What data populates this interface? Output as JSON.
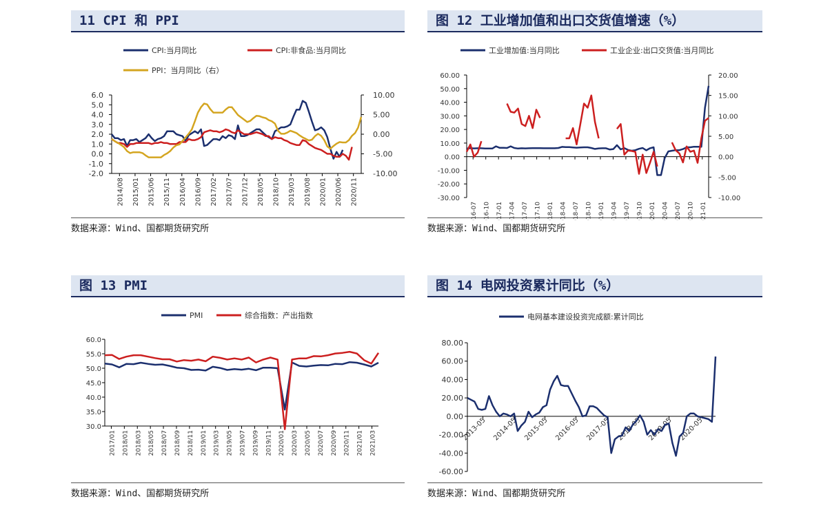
{
  "panels": [
    {
      "title": "11 CPI 和 PPI",
      "source": "数据来源：Wind、国都期货研究所",
      "chart_data": {
        "type": "line",
        "legend": [
          "CPI:当月同比",
          "CPI:非食品:当月同比",
          "PPI：当月同比（右）"
        ],
        "colors": [
          "#1b2f6e",
          "#cc1f1f",
          "#d4a520"
        ],
        "x_ticks": [
          "2014/08",
          "2015/01",
          "2015/06",
          "2015/11",
          "2016/04",
          "2016/09",
          "2017/02",
          "2017/07",
          "2017/12",
          "2018/05",
          "2018/10",
          "2019/03",
          "2019/08",
          "2020/01",
          "2020/06",
          "2020/11"
        ],
        "left_ticks": [
          "6.0",
          "5.0",
          "4.0",
          "3.0",
          "2.0",
          "1.0",
          "0.0",
          "-1.0",
          "-2.0"
        ],
        "right_ticks": [
          "10.00",
          "5.00",
          "0.00",
          "-5.00",
          "-10.00"
        ],
        "ylim_left": [
          -2,
          6
        ],
        "ylim_right": [
          -10,
          10
        ],
        "series": [
          {
            "name": "CPI:当月同比",
            "axis": "left",
            "start": "2014/08",
            "values": [
              2.0,
              1.6,
              1.6,
              1.4,
              1.5,
              0.8,
              1.4,
              1.4,
              1.5,
              1.2,
              1.4,
              1.6,
              2.0,
              1.6,
              1.3,
              1.5,
              1.6,
              1.8,
              2.3,
              2.3,
              2.3,
              2.0,
              1.9,
              1.8,
              1.3,
              1.9,
              2.1,
              2.3,
              2.1,
              2.5,
              0.8,
              0.9,
              1.2,
              1.5,
              1.5,
              1.4,
              1.8,
              1.6,
              1.9,
              1.8,
              1.5,
              2.9,
              1.8,
              1.8,
              1.9,
              2.1,
              2.3,
              2.5,
              2.5,
              2.2,
              1.9,
              1.7,
              1.5,
              2.3,
              2.5,
              2.7,
              2.7,
              2.8,
              3.0,
              3.8,
              4.5,
              4.5,
              5.4,
              5.2,
              4.3,
              3.3,
              2.4,
              2.5,
              2.7,
              2.4,
              1.7,
              0.5,
              -0.5,
              0.2,
              -0.3,
              0.4
            ]
          },
          {
            "name": "CPI:非食品:当月同比",
            "axis": "left",
            "start": "2014/08",
            "values": [
              1.5,
              1.3,
              1.1,
              1.1,
              1.0,
              0.7,
              1.0,
              1.0,
              1.1,
              1.1,
              1.1,
              1.1,
              1.1,
              1.0,
              1.1,
              1.1,
              1.2,
              1.1,
              1.1,
              1.0,
              1.0,
              1.0,
              1.2,
              1.2,
              1.2,
              1.5,
              1.4,
              1.4,
              1.5,
              1.7,
              2.2,
              2.3,
              2.4,
              2.3,
              2.3,
              2.2,
              2.3,
              2.5,
              2.4,
              2.2,
              2.1,
              2.4,
              2.2,
              2.0,
              2.0,
              2.0,
              2.1,
              2.2,
              2.1,
              2.0,
              1.8,
              1.8,
              1.5,
              1.7,
              1.6,
              1.6,
              1.4,
              1.3,
              1.1,
              1.0,
              0.9,
              0.9,
              1.4,
              1.3,
              1.0,
              0.8,
              0.6,
              0.5,
              0.4,
              0.2,
              0.0,
              0.0,
              -0.2,
              -0.3,
              -0.3,
              0.0,
              -0.2,
              -0.6,
              0.7
            ]
          },
          {
            "name": "PPI：当月同比（右）",
            "axis": "right",
            "start": "2014/08",
            "values": [
              -1.2,
              -1.8,
              -2.2,
              -2.7,
              -3.3,
              -4.3,
              -4.8,
              -4.6,
              -4.6,
              -4.6,
              -4.8,
              -5.4,
              -5.9,
              -5.9,
              -5.9,
              -5.9,
              -5.9,
              -5.3,
              -4.9,
              -4.3,
              -3.4,
              -2.8,
              -2.6,
              -1.7,
              -0.8,
              0.1,
              1.2,
              3.3,
              5.5,
              6.9,
              7.8,
              7.6,
              6.4,
              5.5,
              5.5,
              5.5,
              5.5,
              6.3,
              6.9,
              6.9,
              5.9,
              4.9,
              4.3,
              3.7,
              3.1,
              3.4,
              4.1,
              4.7,
              4.6,
              4.3,
              4.1,
              3.6,
              3.3,
              2.7,
              0.9,
              0.1,
              0.1,
              0.4,
              0.9,
              0.6,
              0.3,
              -0.3,
              -0.8,
              -1.2,
              -1.6,
              -1.4,
              -0.5,
              0.1,
              -0.4,
              -1.5,
              -3.1,
              -3.7,
              -3.0,
              -2.4,
              -2.0,
              -2.1,
              -2.1,
              -1.5,
              -0.4,
              0.3,
              1.7,
              4.4
            ]
          }
        ]
      }
    },
    {
      "title": "图 12 工业增加值和出口交货值增速（%）",
      "source": "数据来源：Wind、国都期货研究所",
      "chart_data": {
        "type": "line",
        "legend": [
          "工业增加值:当月同比",
          "工业企业:出口交货值:当月同比"
        ],
        "colors": [
          "#1b2f6e",
          "#cc1f1f"
        ],
        "x_ticks": [
          "2016-07",
          "2016-10",
          "2017-01",
          "2017-04",
          "2017-07",
          "2017-10",
          "2018-01",
          "2018-04",
          "2018-07",
          "2018-10",
          "2019-01",
          "2019-04",
          "2019-07",
          "2019-10",
          "2020-01",
          "2020-04",
          "2020-07",
          "2020-10",
          "2021-01"
        ],
        "left_ticks": [
          "60.00",
          "50.00",
          "40.00",
          "30.00",
          "20.00",
          "10.00",
          "0.00",
          "-10.00",
          "-20.00",
          "-30.00"
        ],
        "right_ticks": [
          "20.00",
          "15.00",
          "10.00",
          "5.00",
          "0.00",
          "-5.00",
          "-10.00"
        ],
        "ylim_left": [
          -30,
          60
        ],
        "ylim_right": [
          -10,
          20
        ],
        "series": [
          {
            "name": "工业增加值:当月同比",
            "axis": "left",
            "start": "2016-07",
            "values": [
              6.0,
              6.3,
              6.1,
              6.2,
              6.2,
              6.0,
              6.0,
              6.0,
              7.6,
              6.5,
              6.5,
              6.4,
              7.6,
              6.4,
              6.0,
              6.2,
              6.1,
              6.2,
              6.3,
              6.3,
              6.3,
              6.2,
              6.2,
              6.2,
              6.2,
              6.4,
              7.2,
              7.0,
              7.0,
              6.8,
              6.6,
              6.8,
              6.9,
              6.9,
              6.4,
              5.7,
              6.1,
              6.2,
              6.2,
              5.3,
              5.6,
              8.5,
              5.4,
              6.3,
              5.0,
              4.4,
              4.8,
              5.8,
              6.4,
              4.7,
              6.2,
              6.9,
              -13.5,
              -13.5,
              -1.1,
              3.9,
              4.4,
              4.8,
              4.8,
              5.6,
              6.9,
              6.9,
              7.3,
              7.3,
              7.3,
              36.0,
              52.0
            ]
          },
          {
            "name": "工业企业:出口交货值:当月同比",
            "axis": "right",
            "start": "2016-07",
            "values": [
              1.2,
              3.0,
              0.0,
              1.0,
              3.8,
              null,
              null,
              null,
              null,
              null,
              null,
              13.0,
              11.0,
              10.8,
              11.8,
              8.0,
              7.5,
              10.0,
              7.0,
              11.5,
              9.5,
              null,
              null,
              null,
              null,
              null,
              null,
              4.5,
              4.5,
              7.0,
              3.0,
              8.0,
              13.0,
              12.0,
              15.0,
              8.5,
              4.5,
              null,
              null,
              null,
              null,
              6.8,
              8.0,
              0.5,
              1.5,
              1.4,
              1.2,
              -4.2,
              0.5,
              -4.0,
              -1.5,
              1.2,
              -2.4,
              null,
              null,
              null,
              3.5,
              1.6,
              0.8,
              -1.4,
              2.5,
              1.2,
              1.5,
              -1.5,
              4.5,
              8.8,
              9.5
            ]
          }
        ]
      }
    },
    {
      "title": "图 13 PMI",
      "source": "数据来源：Wind、国都期货研究所",
      "chart_data": {
        "type": "line",
        "legend": [
          "PMI",
          "综合指数：产出指数"
        ],
        "colors": [
          "#1b2f6e",
          "#cc1f1f"
        ],
        "x_ticks": [
          "2017/01",
          "2018/01",
          "2018/03",
          "2018/05",
          "2018/07",
          "2018/09",
          "2018/11",
          "2019/01",
          "2019/03",
          "2019/05",
          "2019/07",
          "2019/09",
          "2019/11",
          "2020/01",
          "2020/03",
          "2020/05",
          "2020/07",
          "2020/09",
          "2020/11",
          "2021/01",
          "2021/03"
        ],
        "left_ticks": [
          "60.0",
          "55.0",
          "50.0",
          "45.0",
          "40.0",
          "35.0",
          "30.0"
        ],
        "ylim": [
          30,
          60
        ],
        "series": [
          {
            "name": "PMI",
            "start": "2017/12",
            "values": [
              51.6,
              51.3,
              50.3,
              51.5,
              51.4,
              51.9,
              51.5,
              51.2,
              51.3,
              50.8,
              50.2,
              50.0,
              49.4,
              49.5,
              49.2,
              50.5,
              50.1,
              49.4,
              49.7,
              49.5,
              49.8,
              49.3,
              50.2,
              50.2,
              50.0,
              35.7,
              52.0,
              50.8,
              50.6,
              50.9,
              51.1,
              51.0,
              51.5,
              51.4,
              52.1,
              51.9,
              51.3,
              50.6,
              51.9
            ]
          },
          {
            "name": "综合指数：产出指数",
            "start": "2017/12",
            "values": [
              54.5,
              54.6,
              53.2,
              54.0,
              54.5,
              54.5,
              54.0,
              53.5,
              53.1,
              53.1,
              52.3,
              52.8,
              52.6,
              53.0,
              52.4,
              54.0,
              53.6,
              53.0,
              53.4,
              53.0,
              53.7,
              52.0,
              53.0,
              53.7,
              53.0,
              28.9,
              53.0,
              53.4,
              53.4,
              54.2,
              54.1,
              54.5,
              55.1,
              55.3,
              55.7,
              55.1,
              52.8,
              51.6,
              55.3
            ]
          }
        ]
      }
    },
    {
      "title": "图 14 电网投资累计同比（%）",
      "source": "数据来源：Wind、国都期货研究所",
      "chart_data": {
        "type": "line",
        "legend": [
          "电网基本建设投资完成额:累计同比"
        ],
        "colors": [
          "#1b2f6e"
        ],
        "x_ticks": [
          "2013-05",
          "2014-05",
          "2015-05",
          "2016-05",
          "2017-05",
          "2018-05",
          "2019-05",
          "2020-05"
        ],
        "left_ticks": [
          "80.00",
          "60.00",
          "40.00",
          "20.00",
          "0.00",
          "-20.00",
          "-40.00",
          "-60.00"
        ],
        "ylim": [
          -60,
          80
        ],
        "series": [
          {
            "name": "电网基本建设投资完成额:累计同比",
            "start": "2013-02",
            "values": [
              20,
              18,
              16,
              8,
              7,
              8,
              22,
              12,
              5,
              0,
              3,
              2,
              0,
              3,
              -16,
              -10,
              -6,
              5,
              -1,
              2,
              4,
              10,
              12,
              29,
              38,
              44,
              34,
              33,
              33,
              25,
              17,
              10,
              0,
              1,
              11,
              11,
              9,
              5,
              1,
              -1,
              -40,
              -25,
              -22,
              -21,
              -12,
              -16,
              -9,
              -5,
              1,
              -6,
              -20,
              -15,
              -20,
              -14,
              -16,
              -9,
              -8,
              -29,
              -43,
              -22,
              -18,
              0,
              3,
              3,
              0,
              -1,
              -2,
              -3,
              -6,
              65
            ]
          }
        ]
      }
    }
  ]
}
